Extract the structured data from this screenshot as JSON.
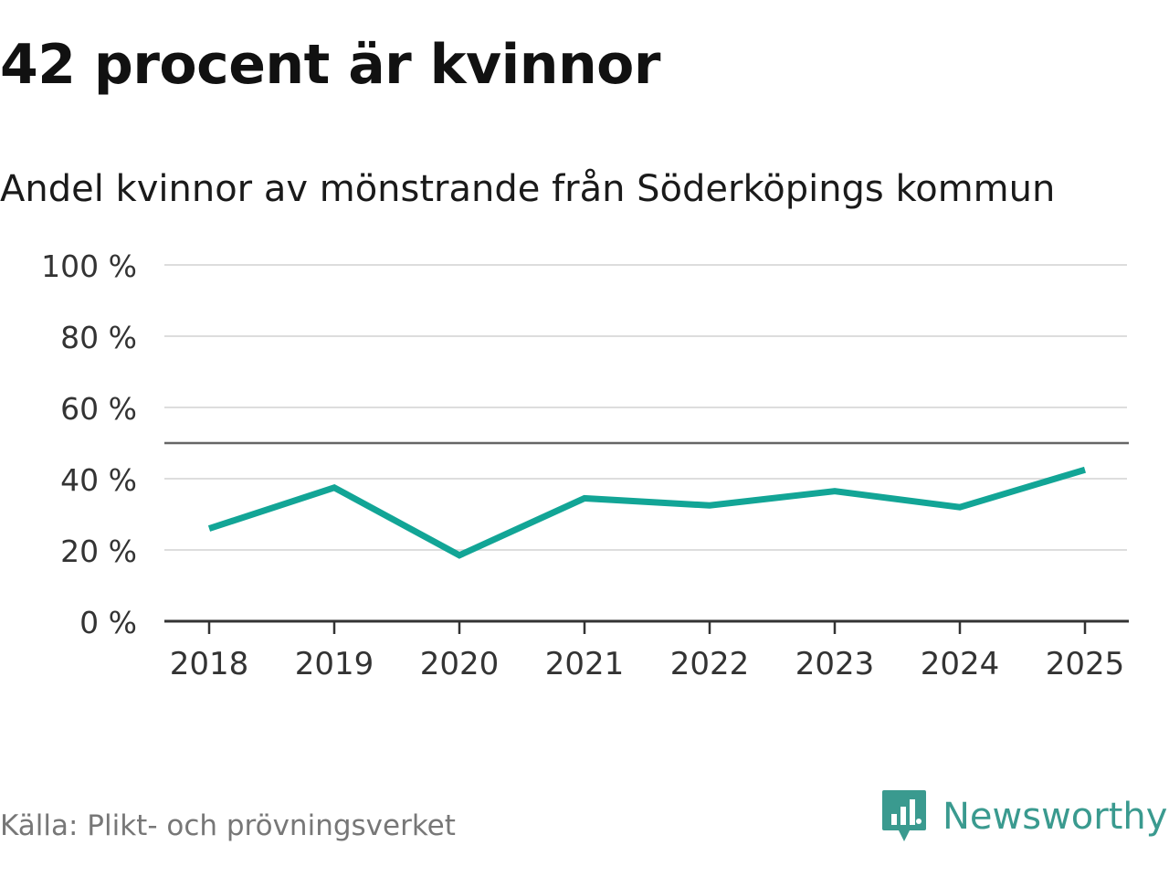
{
  "title": "42 procent är kvinnor",
  "subtitle": "Andel kvinnor av mönstrande från Söderköpings kommun",
  "source": "Källa: Plikt- och prövningsverket",
  "brand": {
    "name": "Newsworthy",
    "icon": "newsworthy-logo-icon",
    "color": "#3a9a8f"
  },
  "chart_data": {
    "type": "line",
    "title": "Andel kvinnor av mönstrande från Söderköpings kommun",
    "xlabel": "",
    "ylabel": "",
    "categories": [
      "2018",
      "2019",
      "2020",
      "2021",
      "2022",
      "2023",
      "2024",
      "2025"
    ],
    "series": [
      {
        "values": [
          26,
          37.5,
          18.5,
          34.5,
          32.5,
          36.5,
          32,
          42.5
        ],
        "color": "#12a596"
      }
    ],
    "ylim": [
      0,
      100
    ],
    "yticks": [
      0,
      20,
      40,
      60,
      80,
      100
    ],
    "ytick_labels": [
      "0 %",
      "20 %",
      "40 %",
      "60 %",
      "80 %",
      "100 %"
    ],
    "reference_line": 50,
    "grid": true,
    "legend": "none"
  }
}
